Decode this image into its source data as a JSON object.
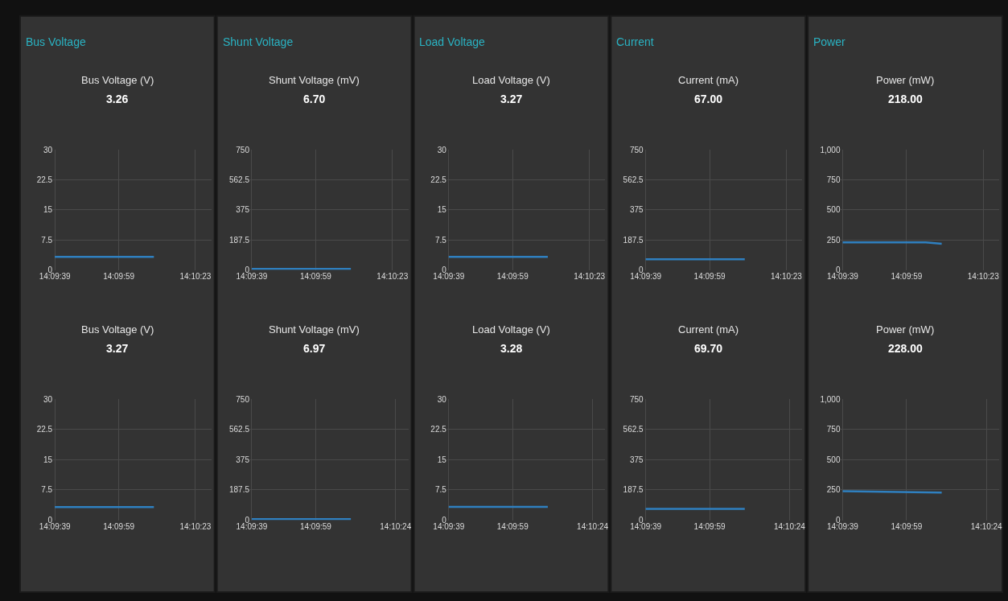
{
  "chart_data": [
    {
      "type": "line",
      "title": "Bus Voltage (V)",
      "subtitle": "3.26",
      "annotations": [
        "Bus Voltage"
      ],
      "x": [
        14.160833,
        14.169444
      ],
      "values": [
        3.26,
        3.26
      ],
      "color": "#2f80c0",
      "xlim": [
        14.160694,
        14.174444
      ],
      "xticks": [
        {
          "value": 14.160833,
          "label": "14:09:39"
        },
        {
          "value": 14.166389,
          "label": "14:09:59"
        },
        {
          "value": 14.173056,
          "label": "14:10:23"
        }
      ],
      "ylim": [
        0,
        30
      ],
      "yticks": [
        0,
        7.5,
        15,
        22.5,
        30
      ],
      "grid": true
    },
    {
      "type": "line",
      "title": "Shunt Voltage (mV)",
      "subtitle": "6.70",
      "annotations": [
        "Shunt Voltage"
      ],
      "x": [
        14.160833,
        14.169444
      ],
      "values": [
        6.7,
        6.7
      ],
      "color": "#2f80c0",
      "xlim": [
        14.160694,
        14.174444
      ],
      "xticks": [
        {
          "value": 14.160833,
          "label": "14:09:39"
        },
        {
          "value": 14.166389,
          "label": "14:09:59"
        },
        {
          "value": 14.173056,
          "label": "14:10:23"
        }
      ],
      "ylim": [
        0,
        750
      ],
      "yticks": [
        0,
        187.5,
        375,
        562.5,
        750
      ],
      "grid": true
    },
    {
      "type": "line",
      "title": "Load Voltage (V)",
      "subtitle": "3.27",
      "annotations": [
        "Load Voltage"
      ],
      "x": [
        14.160833,
        14.169444
      ],
      "values": [
        3.27,
        3.27
      ],
      "color": "#2f80c0",
      "xlim": [
        14.160694,
        14.174444
      ],
      "xticks": [
        {
          "value": 14.160833,
          "label": "14:09:39"
        },
        {
          "value": 14.166389,
          "label": "14:09:59"
        },
        {
          "value": 14.173056,
          "label": "14:10:23"
        }
      ],
      "ylim": [
        0,
        30
      ],
      "yticks": [
        0,
        7.5,
        15,
        22.5,
        30
      ],
      "grid": true
    },
    {
      "type": "line",
      "title": "Current (mA)",
      "subtitle": "67.00",
      "annotations": [
        "Current"
      ],
      "x": [
        14.160833,
        14.169444
      ],
      "values": [
        67,
        67
      ],
      "color": "#2f80c0",
      "xlim": [
        14.160694,
        14.174444
      ],
      "xticks": [
        {
          "value": 14.160833,
          "label": "14:09:39"
        },
        {
          "value": 14.166389,
          "label": "14:09:59"
        },
        {
          "value": 14.173056,
          "label": "14:10:23"
        }
      ],
      "ylim": [
        0,
        750
      ],
      "yticks": [
        0,
        187.5,
        375,
        562.5,
        750
      ],
      "grid": true
    },
    {
      "type": "line",
      "title": "Power (mW)",
      "subtitle": "218.00",
      "annotations": [
        "Power"
      ],
      "x": [
        14.160833,
        14.168056,
        14.169444
      ],
      "values": [
        230,
        230,
        218
      ],
      "color": "#2f80c0",
      "xlim": [
        14.160694,
        14.174444
      ],
      "xticks": [
        {
          "value": 14.160833,
          "label": "14:09:39"
        },
        {
          "value": 14.166389,
          "label": "14:09:59"
        },
        {
          "value": 14.173056,
          "label": "14:10:23"
        }
      ],
      "ylim": [
        0,
        1000
      ],
      "yticks": [
        0,
        250,
        500,
        750,
        {
          "value": 1000,
          "label": "1,000"
        }
      ],
      "grid": true
    },
    {
      "type": "line",
      "title": "Bus Voltage (V)",
      "subtitle": "3.27",
      "x": [
        14.160833,
        14.169444
      ],
      "values": [
        3.27,
        3.27
      ],
      "color": "#2f80c0",
      "xlim": [
        14.160694,
        14.174444
      ],
      "xticks": [
        {
          "value": 14.160833,
          "label": "14:09:39"
        },
        {
          "value": 14.166389,
          "label": "14:09:59"
        },
        {
          "value": 14.173056,
          "label": "14:10:23"
        }
      ],
      "ylim": [
        0,
        30
      ],
      "yticks": [
        0,
        7.5,
        15,
        22.5,
        30
      ],
      "grid": true
    },
    {
      "type": "line",
      "title": "Shunt Voltage (mV)",
      "subtitle": "6.97",
      "x": [
        14.160833,
        14.169444
      ],
      "values": [
        6.97,
        6.97
      ],
      "color": "#2f80c0",
      "xlim": [
        14.160694,
        14.174444
      ],
      "xticks": [
        {
          "value": 14.160833,
          "label": "14:09:39"
        },
        {
          "value": 14.166389,
          "label": "14:09:59"
        },
        {
          "value": 14.173333,
          "label": "14:10:24"
        }
      ],
      "ylim": [
        0,
        750
      ],
      "yticks": [
        0,
        187.5,
        375,
        562.5,
        750
      ],
      "grid": true
    },
    {
      "type": "line",
      "title": "Load Voltage (V)",
      "subtitle": "3.28",
      "x": [
        14.160833,
        14.169444
      ],
      "values": [
        3.28,
        3.28
      ],
      "color": "#2f80c0",
      "xlim": [
        14.160694,
        14.174444
      ],
      "xticks": [
        {
          "value": 14.160833,
          "label": "14:09:39"
        },
        {
          "value": 14.166389,
          "label": "14:09:59"
        },
        {
          "value": 14.173333,
          "label": "14:10:24"
        }
      ],
      "ylim": [
        0,
        30
      ],
      "yticks": [
        0,
        7.5,
        15,
        22.5,
        30
      ],
      "grid": true
    },
    {
      "type": "line",
      "title": "Current (mA)",
      "subtitle": "69.70",
      "x": [
        14.160833,
        14.169444
      ],
      "values": [
        69.7,
        69.7
      ],
      "color": "#2f80c0",
      "xlim": [
        14.160694,
        14.174444
      ],
      "xticks": [
        {
          "value": 14.160833,
          "label": "14:09:39"
        },
        {
          "value": 14.166389,
          "label": "14:09:59"
        },
        {
          "value": 14.173333,
          "label": "14:10:24"
        }
      ],
      "ylim": [
        0,
        750
      ],
      "yticks": [
        0,
        187.5,
        375,
        562.5,
        750
      ],
      "grid": true
    },
    {
      "type": "line",
      "title": "Power (mW)",
      "subtitle": "228.00",
      "x": [
        14.160833,
        14.169444
      ],
      "values": [
        240,
        228
      ],
      "color": "#2f80c0",
      "xlim": [
        14.160694,
        14.174444
      ],
      "xticks": [
        {
          "value": 14.160833,
          "label": "14:09:39"
        },
        {
          "value": 14.166389,
          "label": "14:09:59"
        },
        {
          "value": 14.173333,
          "label": "14:10:24"
        }
      ],
      "ylim": [
        0,
        1000
      ],
      "yticks": [
        0,
        250,
        500,
        750,
        {
          "value": 1000,
          "label": "1,000"
        }
      ],
      "grid": true
    }
  ]
}
